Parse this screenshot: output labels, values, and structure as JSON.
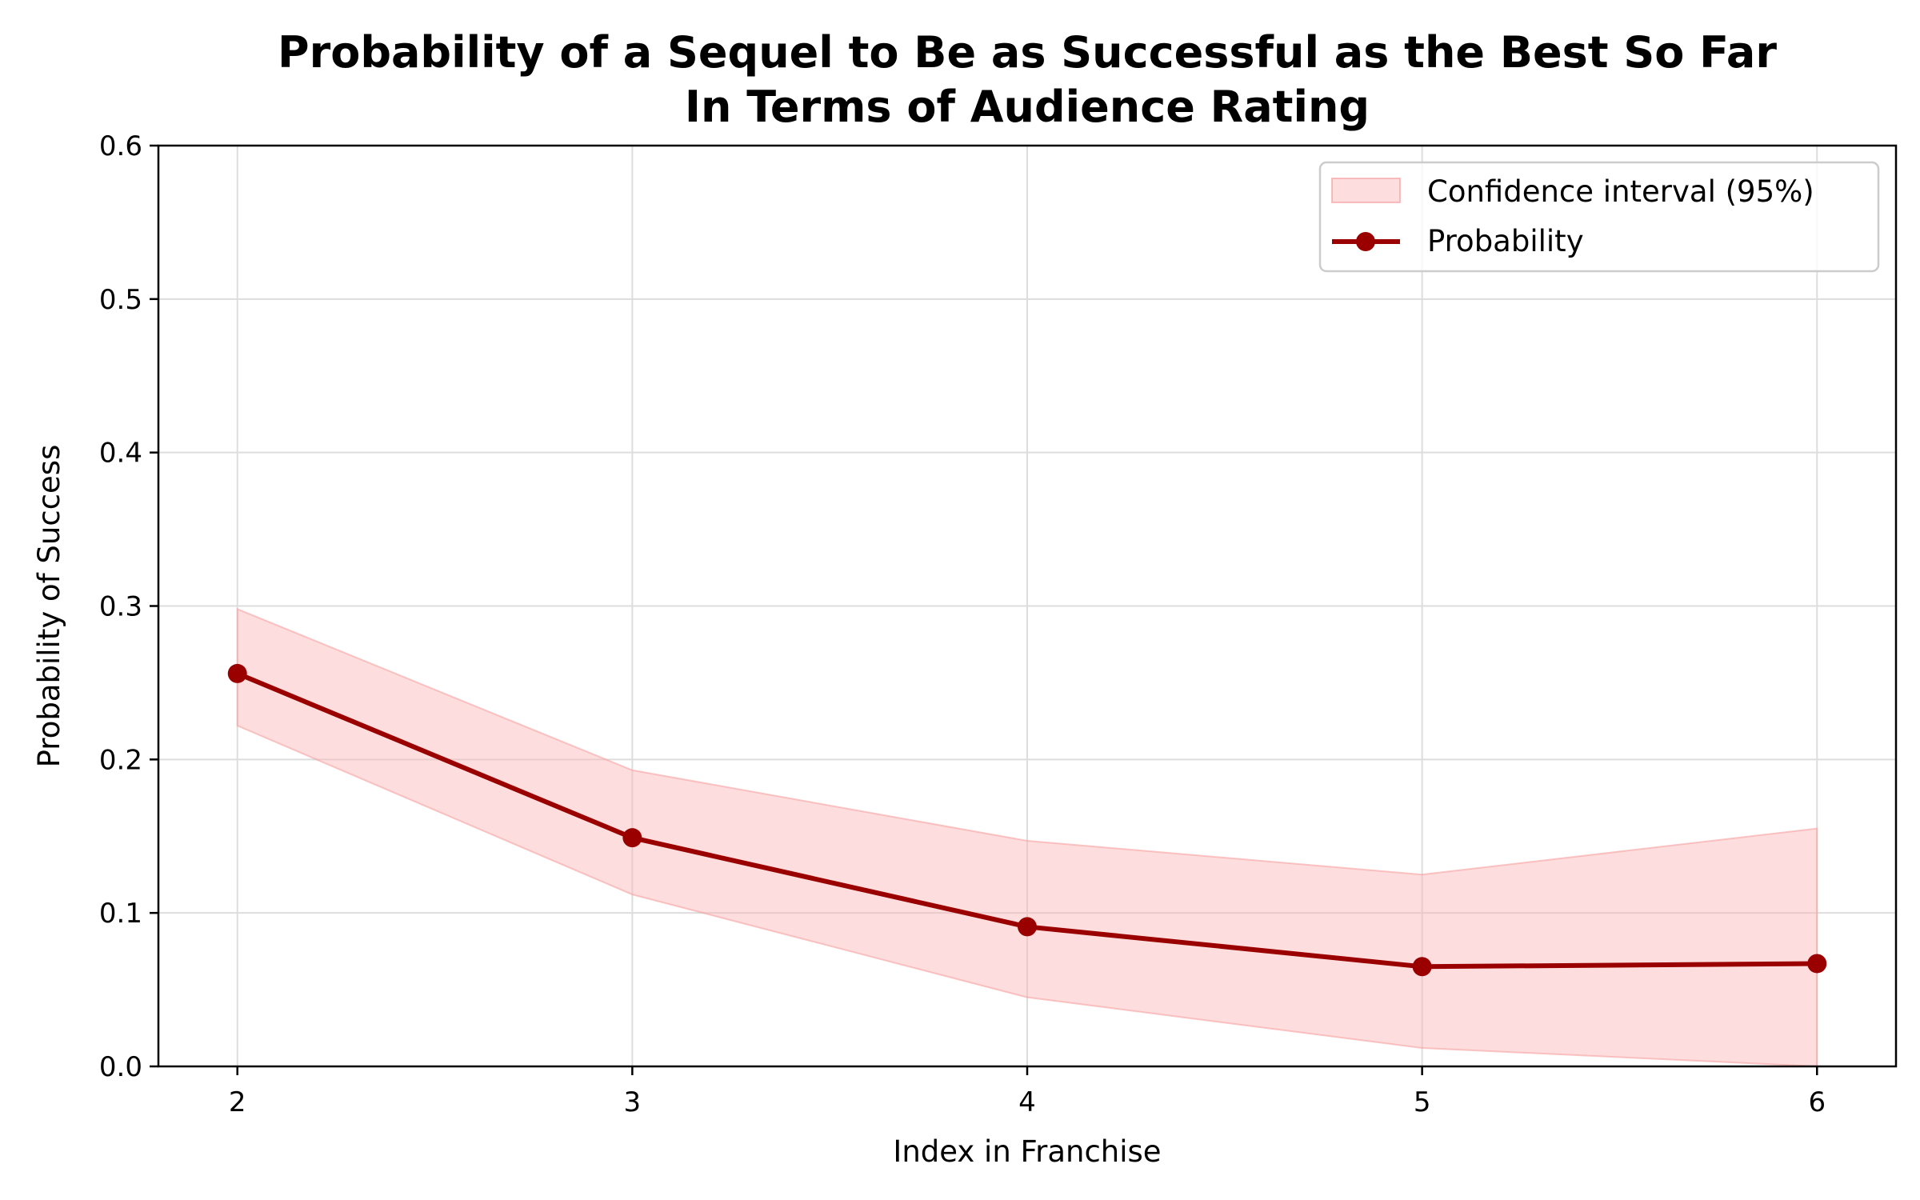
{
  "chart_data": {
    "type": "line",
    "title_line1": "Probability of a Sequel to Be as Successful as the Best So Far",
    "title_line2": "In Terms of Audience Rating",
    "xlabel": "Index in Franchise",
    "ylabel": "Probability of Success",
    "x": [
      2,
      3,
      4,
      5,
      6
    ],
    "xlim": [
      1.8,
      6.2
    ],
    "ylim": [
      0.0,
      0.6
    ],
    "xticks": [
      "2",
      "3",
      "4",
      "5",
      "6"
    ],
    "yticks": [
      "0.0",
      "0.1",
      "0.2",
      "0.3",
      "0.4",
      "0.5",
      "0.6"
    ],
    "grid": true,
    "legend_position": "top-right",
    "series": [
      {
        "name": "Probability",
        "values": [
          0.256,
          0.149,
          0.091,
          0.065,
          0.067
        ],
        "color": "#9b0000"
      }
    ],
    "confidence_band": {
      "name": "Confidence interval (95%)",
      "lower": [
        0.222,
        0.112,
        0.045,
        0.012,
        0.0
      ],
      "upper": [
        0.298,
        0.193,
        0.147,
        0.125,
        0.155
      ],
      "color": "#fbb4b4"
    }
  }
}
